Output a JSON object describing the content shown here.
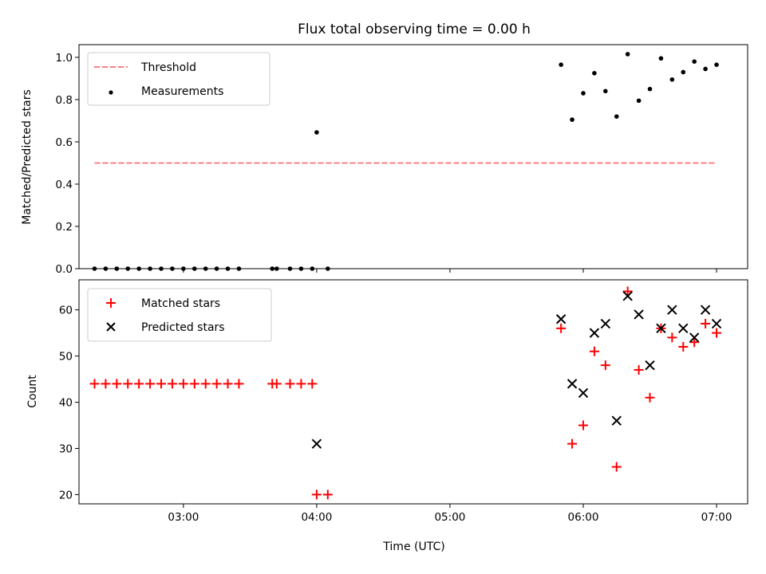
{
  "chart_data": [
    {
      "type": "scatter",
      "title": "Flux total observing time = 0.00 h",
      "xlabel": "",
      "ylabel": "Matched/Predicted stars",
      "xlim": [
        "02:13",
        "07:14"
      ],
      "ylim": [
        0,
        1.06
      ],
      "yticks": [
        "0.0",
        "0.2",
        "0.4",
        "0.6",
        "0.8",
        "1.0"
      ],
      "legend_placement": "upper-left",
      "grid": false,
      "series": [
        {
          "name": "Threshold",
          "kind": "dashed-line",
          "color": "#ff7f7f",
          "x": [
            "02:20",
            "07:00"
          ],
          "y": [
            0.5,
            0.5
          ]
        },
        {
          "name": "Measurements",
          "kind": "dot",
          "color": "#000000",
          "x": [
            "02:20",
            "02:25",
            "02:30",
            "02:35",
            "02:40",
            "02:45",
            "02:50",
            "02:55",
            "03:00",
            "03:05",
            "03:10",
            "03:15",
            "03:20",
            "03:25",
            "03:40",
            "03:42",
            "03:48",
            "03:53",
            "03:58",
            "04:00",
            "04:05",
            "05:50",
            "05:55",
            "06:00",
            "06:05",
            "06:10",
            "06:15",
            "06:20",
            "06:25",
            "06:30",
            "06:35",
            "06:40",
            "06:45",
            "06:50",
            "06:55",
            "07:00"
          ],
          "y": [
            0,
            0,
            0,
            0,
            0,
            0,
            0,
            0,
            0,
            0,
            0,
            0,
            0,
            0,
            0,
            0,
            0,
            0,
            0,
            0.645,
            0,
            0.965,
            0.705,
            0.83,
            0.925,
            0.84,
            0.72,
            1.015,
            0.795,
            0.85,
            0.995,
            0.895,
            0.93,
            0.98,
            0.945,
            0.965
          ]
        }
      ]
    },
    {
      "type": "scatter",
      "title": "",
      "xlabel": "Time (UTC)",
      "ylabel": "Count",
      "xlim": [
        "02:13",
        "07:14"
      ],
      "xticks": [
        "03:00",
        "04:00",
        "05:00",
        "06:00",
        "07:00"
      ],
      "ylim": [
        18,
        66.5
      ],
      "yticks": [
        "20",
        "30",
        "40",
        "50",
        "60"
      ],
      "legend_placement": "upper-left",
      "grid": false,
      "series": [
        {
          "name": "Matched stars",
          "kind": "plus",
          "color": "#ff0000",
          "x": [
            "02:20",
            "02:25",
            "02:30",
            "02:35",
            "02:40",
            "02:45",
            "02:50",
            "02:55",
            "03:00",
            "03:05",
            "03:10",
            "03:15",
            "03:20",
            "03:25",
            "03:40",
            "03:42",
            "03:48",
            "03:53",
            "03:58",
            "04:00",
            "04:05",
            "05:50",
            "05:55",
            "06:00",
            "06:05",
            "06:10",
            "06:15",
            "06:20",
            "06:25",
            "06:30",
            "06:35",
            "06:40",
            "06:45",
            "06:50",
            "06:55",
            "07:00"
          ],
          "y": [
            44,
            44,
            44,
            44,
            44,
            44,
            44,
            44,
            44,
            44,
            44,
            44,
            44,
            44,
            44,
            44,
            44,
            44,
            44,
            20,
            20,
            56,
            31,
            35,
            51,
            48,
            26,
            64,
            47,
            41,
            56,
            54,
            52,
            53,
            57,
            55
          ]
        },
        {
          "name": "Predicted stars",
          "kind": "x",
          "color": "#000000",
          "x": [
            "04:00",
            "05:50",
            "05:55",
            "06:00",
            "06:05",
            "06:10",
            "06:15",
            "06:20",
            "06:25",
            "06:30",
            "06:35",
            "06:40",
            "06:45",
            "06:50",
            "06:55",
            "07:00"
          ],
          "y": [
            31,
            58,
            44,
            42,
            55,
            57,
            36,
            63,
            59,
            48,
            56,
            60,
            56,
            54,
            60,
            57
          ]
        }
      ]
    }
  ]
}
